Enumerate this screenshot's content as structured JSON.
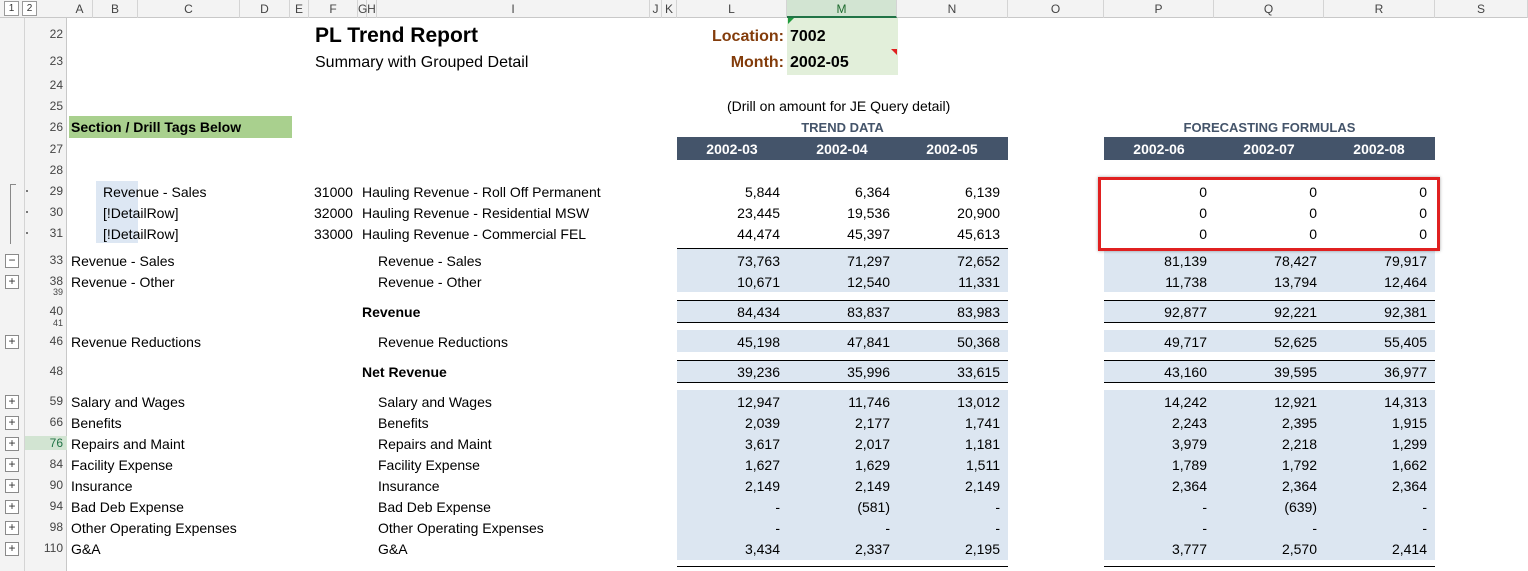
{
  "outline_levels": [
    "1",
    "2"
  ],
  "columns": [
    "A",
    "B",
    "C",
    "D",
    "E",
    "F",
    "G",
    "H",
    "I",
    "J",
    "K",
    "L",
    "M",
    "N",
    "O",
    "P",
    "Q",
    "R",
    "S"
  ],
  "report": {
    "title": "PL Trend Report",
    "subtitle": "Summary with Grouped Detail",
    "location_label": "Location:",
    "location_value": "7002",
    "month_label": "Month:",
    "month_value": "2002-05",
    "drill_note": "(Drill on amount for JE Query detail)",
    "section_tag_header": "Section / Drill Tags Below",
    "trend_title": "TREND DATA",
    "forecast_title": "FORECASTING FORMULAS",
    "trend_months": [
      "2002-03",
      "2002-04",
      "2002-05"
    ],
    "forecast_months": [
      "2002-06",
      "2002-07",
      "2002-08"
    ]
  },
  "row_numbers": [
    "22",
    "23",
    "24",
    "25",
    "26",
    "27",
    "28",
    "29",
    "30",
    "31",
    "33",
    "38",
    "39",
    "40",
    "41",
    "46",
    "48",
    "59",
    "66",
    "76",
    "84",
    "90",
    "94",
    "98",
    "110"
  ],
  "detail_rows": [
    {
      "row": "29",
      "tag": "Revenue - Sales",
      "account": "31000",
      "name": "Hauling Revenue - Roll Off Permanent",
      "trend": [
        "5,844",
        "6,364",
        "6,139"
      ],
      "forecast": [
        "0",
        "0",
        "0"
      ]
    },
    {
      "row": "30",
      "tag": "[!DetailRow]",
      "account": "32000",
      "name": "Hauling Revenue - Residential MSW",
      "trend": [
        "23,445",
        "19,536",
        "20,900"
      ],
      "forecast": [
        "0",
        "0",
        "0"
      ]
    },
    {
      "row": "31",
      "tag": "[!DetailRow]",
      "account": "33000",
      "name": "Hauling Revenue - Commercial FEL",
      "trend": [
        "44,474",
        "45,397",
        "45,613"
      ],
      "forecast": [
        "0",
        "0",
        "0"
      ]
    }
  ],
  "summary_rows": [
    {
      "row": "33",
      "button": "−",
      "section": "Revenue - Sales",
      "label": "Revenue - Sales",
      "bold": false,
      "trend": [
        "73,763",
        "71,297",
        "72,652"
      ],
      "forecast": [
        "81,139",
        "78,427",
        "79,917"
      ]
    },
    {
      "row": "38",
      "button": "+",
      "section": "Revenue - Other",
      "label": "Revenue - Other",
      "bold": false,
      "trend": [
        "10,671",
        "12,540",
        "11,331"
      ],
      "forecast": [
        "11,738",
        "13,794",
        "12,464"
      ]
    },
    {
      "row": "40",
      "button": "",
      "section": "",
      "label": "Revenue",
      "bold": true,
      "trend": [
        "84,434",
        "83,837",
        "83,983"
      ],
      "forecast": [
        "92,877",
        "92,221",
        "92,381"
      ]
    },
    {
      "row": "46",
      "button": "+",
      "section": "Revenue Reductions",
      "label": "Revenue Reductions",
      "bold": false,
      "trend": [
        "45,198",
        "47,841",
        "50,368"
      ],
      "forecast": [
        "49,717",
        "52,625",
        "55,405"
      ]
    },
    {
      "row": "48",
      "button": "",
      "section": "",
      "label": "Net Revenue",
      "bold": true,
      "trend": [
        "39,236",
        "35,996",
        "33,615"
      ],
      "forecast": [
        "43,160",
        "39,595",
        "36,977"
      ]
    },
    {
      "row": "59",
      "button": "+",
      "section": "Salary and Wages",
      "label": "Salary and Wages",
      "bold": false,
      "trend": [
        "12,947",
        "11,746",
        "13,012"
      ],
      "forecast": [
        "14,242",
        "12,921",
        "14,313"
      ]
    },
    {
      "row": "66",
      "button": "+",
      "section": "Benefits",
      "label": "Benefits",
      "bold": false,
      "trend": [
        "2,039",
        "2,177",
        "1,741"
      ],
      "forecast": [
        "2,243",
        "2,395",
        "1,915"
      ]
    },
    {
      "row": "76",
      "button": "+",
      "section": "Repairs and Maint",
      "label": "Repairs and Maint",
      "bold": false,
      "trend": [
        "3,617",
        "2,017",
        "1,181"
      ],
      "forecast": [
        "3,979",
        "2,218",
        "1,299"
      ]
    },
    {
      "row": "84",
      "button": "+",
      "section": "Facility Expense",
      "label": "Facility Expense",
      "bold": false,
      "trend": [
        "1,627",
        "1,629",
        "1,511"
      ],
      "forecast": [
        "1,789",
        "1,792",
        "1,662"
      ]
    },
    {
      "row": "90",
      "button": "+",
      "section": "Insurance",
      "label": "Insurance",
      "bold": false,
      "trend": [
        "2,149",
        "2,149",
        "2,149"
      ],
      "forecast": [
        "2,364",
        "2,364",
        "2,364"
      ]
    },
    {
      "row": "94",
      "button": "+",
      "section": "Bad Deb Expense",
      "label": "Bad Deb Expense",
      "bold": false,
      "trend": [
        "-",
        "(581)",
        "-"
      ],
      "forecast": [
        "-",
        "(639)",
        "-"
      ]
    },
    {
      "row": "98",
      "button": "+",
      "section": "Other Operating Expenses",
      "label": "Other Operating Expenses",
      "bold": false,
      "trend": [
        "-",
        "-",
        "-"
      ],
      "forecast": [
        "-",
        "-",
        "-"
      ]
    },
    {
      "row": "110",
      "button": "+",
      "section": "G&A",
      "label": "G&A",
      "bold": false,
      "trend": [
        "3,434",
        "2,337",
        "2,195"
      ],
      "forecast": [
        "3,777",
        "2,570",
        "2,414"
      ]
    }
  ],
  "colors": {
    "header_bar": "#44546a",
    "band": "#dce6f1",
    "section_tag_fill": "#a9d08e",
    "param_fill": "#e2efda",
    "param_label": "#833c0b",
    "highlight_box": "#e02020"
  }
}
